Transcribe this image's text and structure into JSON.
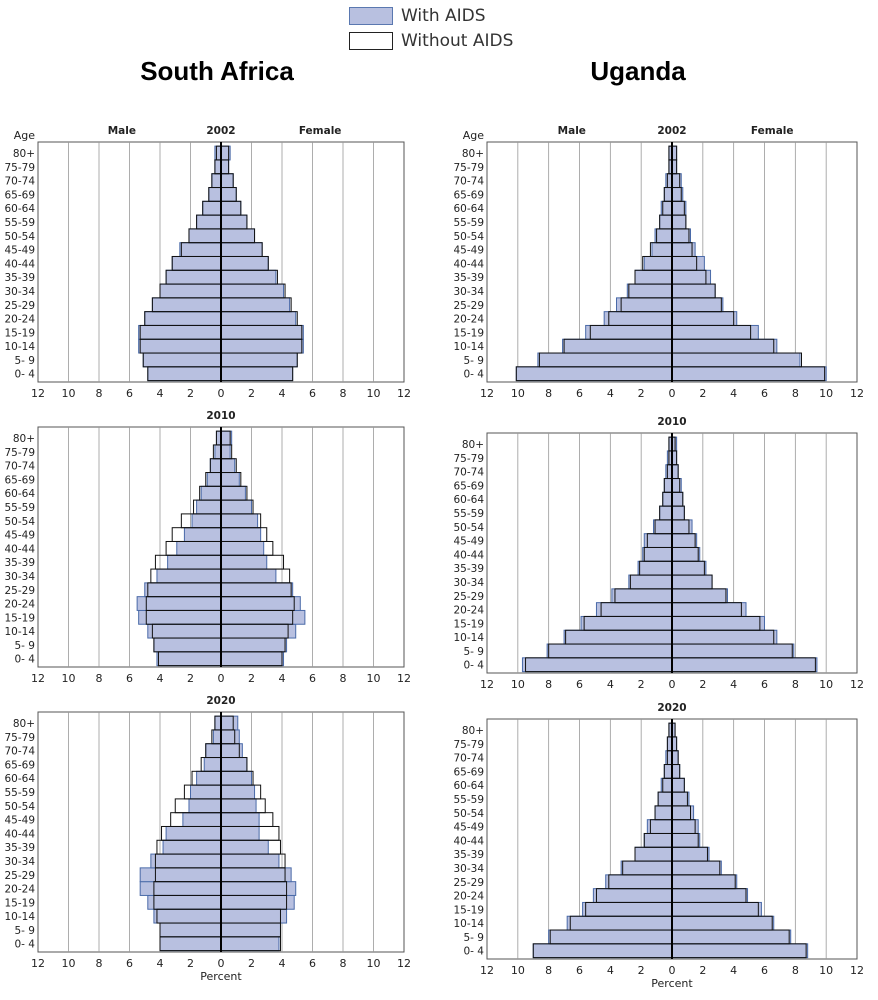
{
  "legend": {
    "with_aids": "With AIDS",
    "without_aids": "Without AIDS"
  },
  "countries": {
    "south_africa": "South Africa",
    "uganda": "Uganda"
  },
  "colors": {
    "with_aids_fill": "#b8c0e0",
    "with_aids_edge": "#4a6aa8",
    "without_aids_edge": "#111111",
    "grid": "#999999"
  },
  "chart_data": [
    {
      "type": "bar",
      "country": "South Africa",
      "year": "2002",
      "header_left": "Male",
      "header_center": "2002",
      "header_right": "Female",
      "age_label": "Age",
      "xlabel": "",
      "categories": [
        "0- 4",
        "5- 9",
        "10-14",
        "15-19",
        "20-24",
        "25-29",
        "30-34",
        "35-39",
        "40-44",
        "45-49",
        "50-54",
        "55-59",
        "60-64",
        "65-69",
        "70-74",
        "75-79",
        "80+"
      ],
      "xlim": [
        -12,
        12
      ],
      "x_ticks": [
        "12",
        "10",
        "8",
        "6",
        "4",
        "2",
        "0",
        "2",
        "4",
        "6",
        "8",
        "10",
        "12"
      ],
      "series": [
        {
          "name": "With AIDS",
          "male": [
            4.8,
            5.1,
            5.4,
            5.4,
            5.0,
            4.5,
            4.0,
            3.6,
            3.2,
            2.7,
            2.1,
            1.6,
            1.2,
            0.8,
            0.6,
            0.4,
            0.4
          ],
          "female": [
            4.7,
            5.0,
            5.4,
            5.4,
            4.9,
            4.5,
            4.1,
            3.6,
            3.1,
            2.7,
            2.2,
            1.7,
            1.3,
            1.0,
            0.8,
            0.5,
            0.6
          ]
        },
        {
          "name": "Without AIDS",
          "male": [
            4.8,
            5.1,
            5.3,
            5.3,
            5.0,
            4.5,
            4.0,
            3.6,
            3.2,
            2.6,
            2.1,
            1.6,
            1.2,
            0.8,
            0.6,
            0.4,
            0.3
          ],
          "female": [
            4.7,
            5.0,
            5.3,
            5.3,
            5.0,
            4.6,
            4.2,
            3.7,
            3.1,
            2.7,
            2.2,
            1.7,
            1.3,
            1.0,
            0.8,
            0.5,
            0.5
          ]
        }
      ]
    },
    {
      "type": "bar",
      "country": "South Africa",
      "year": "2010",
      "header_left": "",
      "header_center": "2010",
      "header_right": "",
      "age_label": "",
      "xlabel": "",
      "categories": [
        "0- 4",
        "5- 9",
        "10-14",
        "15-19",
        "20-24",
        "25-29",
        "30-34",
        "35-39",
        "40-44",
        "45-49",
        "50-54",
        "55-59",
        "60-64",
        "65-69",
        "70-74",
        "75-79",
        "80+"
      ],
      "xlim": [
        -12,
        12
      ],
      "x_ticks": [
        "12",
        "10",
        "8",
        "6",
        "4",
        "2",
        "0",
        "2",
        "4",
        "6",
        "8",
        "10",
        "12"
      ],
      "series": [
        {
          "name": "With AIDS",
          "male": [
            4.2,
            4.4,
            4.8,
            5.4,
            5.5,
            5.0,
            4.2,
            3.5,
            2.9,
            2.4,
            1.9,
            1.6,
            1.3,
            0.9,
            0.7,
            0.4,
            0.3
          ],
          "female": [
            4.1,
            4.3,
            4.9,
            5.5,
            5.2,
            4.7,
            3.6,
            3.0,
            2.8,
            2.6,
            2.4,
            2.0,
            1.6,
            1.2,
            0.9,
            0.6,
            0.7
          ]
        },
        {
          "name": "Without AIDS",
          "male": [
            4.1,
            4.4,
            4.5,
            4.9,
            4.9,
            4.8,
            4.6,
            4.3,
            3.6,
            3.2,
            2.6,
            1.8,
            1.4,
            1.0,
            0.7,
            0.5,
            0.3
          ],
          "female": [
            4.0,
            4.2,
            4.4,
            4.7,
            4.8,
            4.6,
            4.5,
            4.1,
            3.4,
            3.0,
            2.6,
            2.1,
            1.7,
            1.3,
            1.0,
            0.7,
            0.6
          ]
        }
      ]
    },
    {
      "type": "bar",
      "country": "South Africa",
      "year": "2020",
      "header_left": "",
      "header_center": "2020",
      "header_right": "",
      "age_label": "",
      "xlabel": "Percent",
      "categories": [
        "0- 4",
        "5- 9",
        "10-14",
        "15-19",
        "20-24",
        "25-29",
        "30-34",
        "35-39",
        "40-44",
        "45-49",
        "50-54",
        "55-59",
        "60-64",
        "65-69",
        "70-74",
        "75-79",
        "80+"
      ],
      "xlim": [
        -12,
        12
      ],
      "x_ticks": [
        "12",
        "10",
        "8",
        "6",
        "4",
        "2",
        "0",
        "2",
        "4",
        "6",
        "8",
        "10",
        "12"
      ],
      "series": [
        {
          "name": "With AIDS",
          "male": [
            4.0,
            4.0,
            4.4,
            4.8,
            5.3,
            5.3,
            4.6,
            3.8,
            3.6,
            2.5,
            2.1,
            2.0,
            1.6,
            1.1,
            1.0,
            0.5,
            0.4
          ],
          "female": [
            3.8,
            3.9,
            4.3,
            4.8,
            4.9,
            4.6,
            3.8,
            3.1,
            2.5,
            2.5,
            2.3,
            2.2,
            2.0,
            1.7,
            1.4,
            1.2,
            1.1
          ]
        },
        {
          "name": "Without AIDS",
          "male": [
            4.0,
            4.0,
            4.2,
            4.4,
            4.4,
            4.3,
            4.3,
            4.2,
            3.9,
            3.3,
            3.0,
            2.4,
            1.9,
            1.3,
            1.0,
            0.6,
            0.4
          ],
          "female": [
            3.9,
            3.9,
            3.9,
            4.3,
            4.3,
            4.2,
            4.2,
            3.9,
            3.8,
            3.4,
            2.9,
            2.6,
            2.1,
            1.7,
            1.2,
            0.9,
            0.8
          ]
        }
      ]
    },
    {
      "type": "bar",
      "country": "Uganda",
      "year": "2002",
      "header_left": "Male",
      "header_center": "2002",
      "header_right": "Female",
      "age_label": "Age",
      "xlabel": "",
      "categories": [
        "0- 4",
        "5- 9",
        "10-14",
        "15-19",
        "20-24",
        "25-29",
        "30-34",
        "35-39",
        "40-44",
        "45-49",
        "50-54",
        "55-59",
        "60-64",
        "65-69",
        "70-74",
        "75-79",
        "80+"
      ],
      "xlim": [
        -12,
        12
      ],
      "x_ticks": [
        "12",
        "10",
        "8",
        "6",
        "4",
        "2",
        "0",
        "2",
        "4",
        "6",
        "8",
        "10",
        "12"
      ],
      "series": [
        {
          "name": "With AIDS",
          "male": [
            10.1,
            8.7,
            7.1,
            5.6,
            4.4,
            3.6,
            2.9,
            2.4,
            1.8,
            1.3,
            1.1,
            0.8,
            0.7,
            0.5,
            0.4,
            0.2,
            0.2
          ],
          "female": [
            10.0,
            8.3,
            6.8,
            5.6,
            4.2,
            3.3,
            2.8,
            2.5,
            2.1,
            1.5,
            1.2,
            0.9,
            0.9,
            0.7,
            0.6,
            0.3,
            0.3
          ]
        },
        {
          "name": "Without AIDS",
          "male": [
            10.1,
            8.6,
            7.0,
            5.3,
            4.1,
            3.3,
            2.8,
            2.4,
            1.9,
            1.4,
            1.0,
            0.8,
            0.6,
            0.5,
            0.3,
            0.2,
            0.2
          ],
          "female": [
            9.9,
            8.4,
            6.6,
            5.1,
            4.0,
            3.2,
            2.8,
            2.2,
            1.6,
            1.3,
            1.1,
            0.9,
            0.8,
            0.6,
            0.5,
            0.3,
            0.3
          ]
        }
      ]
    },
    {
      "type": "bar",
      "country": "Uganda",
      "year": "2010",
      "header_left": "",
      "header_center": "2010",
      "header_right": "",
      "age_label": "",
      "xlabel": "",
      "categories": [
        "0- 4",
        "5- 9",
        "10-14",
        "15-19",
        "20-24",
        "25-29",
        "30-34",
        "35-39",
        "40-44",
        "45-49",
        "50-54",
        "55-59",
        "60-64",
        "65-69",
        "70-74",
        "75-79",
        "80+"
      ],
      "xlim": [
        -12,
        12
      ],
      "x_ticks": [
        "12",
        "10",
        "8",
        "6",
        "4",
        "2",
        "0",
        "2",
        "4",
        "6",
        "8",
        "10",
        "12"
      ],
      "series": [
        {
          "name": "With AIDS",
          "male": [
            9.7,
            8.1,
            7.0,
            5.9,
            4.9,
            3.9,
            2.8,
            2.2,
            1.9,
            1.8,
            1.2,
            0.8,
            0.6,
            0.5,
            0.4,
            0.3,
            0.2
          ],
          "female": [
            9.4,
            7.9,
            6.8,
            6.0,
            4.8,
            3.6,
            2.6,
            2.2,
            1.8,
            1.6,
            1.3,
            0.8,
            0.7,
            0.6,
            0.4,
            0.3,
            0.3
          ]
        },
        {
          "name": "Without AIDS",
          "male": [
            9.5,
            8.0,
            6.9,
            5.7,
            4.6,
            3.7,
            2.7,
            2.1,
            1.8,
            1.6,
            1.1,
            0.8,
            0.6,
            0.5,
            0.3,
            0.2,
            0.2
          ],
          "female": [
            9.3,
            7.8,
            6.6,
            5.7,
            4.5,
            3.5,
            2.6,
            2.1,
            1.7,
            1.5,
            1.1,
            0.8,
            0.7,
            0.5,
            0.4,
            0.3,
            0.2
          ]
        }
      ]
    },
    {
      "type": "bar",
      "country": "Uganda",
      "year": "2020",
      "header_left": "",
      "header_center": "2020",
      "header_right": "",
      "age_label": "",
      "xlabel": "Percent",
      "categories": [
        "0- 4",
        "5- 9",
        "10-14",
        "15-19",
        "20-24",
        "25-29",
        "30-34",
        "35-39",
        "40-44",
        "45-49",
        "50-54",
        "55-59",
        "60-64",
        "65-69",
        "70-74",
        "75-79",
        "80+"
      ],
      "xlim": [
        -12,
        12
      ],
      "x_ticks": [
        "12",
        "10",
        "8",
        "6",
        "4",
        "2",
        "0",
        "2",
        "4",
        "6",
        "8",
        "10",
        "12"
      ],
      "series": [
        {
          "name": "With AIDS",
          "male": [
            9.0,
            8.0,
            6.8,
            5.8,
            5.1,
            4.3,
            3.3,
            2.4,
            1.8,
            1.6,
            1.1,
            0.9,
            0.7,
            0.5,
            0.4,
            0.3,
            0.2
          ],
          "female": [
            8.8,
            7.7,
            6.6,
            5.8,
            4.9,
            4.2,
            3.2,
            2.4,
            1.8,
            1.7,
            1.4,
            1.1,
            0.8,
            0.5,
            0.4,
            0.3,
            0.2
          ]
        },
        {
          "name": "Without AIDS",
          "male": [
            9.0,
            7.9,
            6.6,
            5.6,
            4.9,
            4.1,
            3.2,
            2.4,
            1.8,
            1.4,
            1.1,
            0.9,
            0.6,
            0.5,
            0.3,
            0.3,
            0.2
          ],
          "female": [
            8.7,
            7.6,
            6.5,
            5.6,
            4.8,
            4.1,
            3.1,
            2.3,
            1.7,
            1.5,
            1.2,
            1.0,
            0.8,
            0.5,
            0.4,
            0.3,
            0.2
          ]
        }
      ]
    }
  ]
}
